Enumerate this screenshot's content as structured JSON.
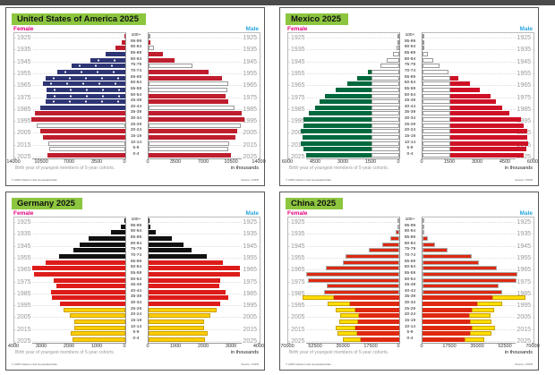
{
  "common": {
    "female_label": "Female",
    "male_label": "Male",
    "footnote": "Birth year of youngest members of 5-year cohorts.",
    "units": "in thousands",
    "copyright": "© 2025 Clarkson and Geospatial Atlas",
    "source": "Source: UNPD",
    "age_groups": [
      "100+",
      "95-99",
      "90-94",
      "85-89",
      "80-84",
      "75-79",
      "70-74",
      "65-69",
      "60-64",
      "55-59",
      "50-54",
      "45-49",
      "40-44",
      "35-39",
      "30-34",
      "25-29",
      "20-24",
      "15-19",
      "10-14",
      "5-9",
      "0-4"
    ],
    "birth_years": [
      "1925",
      "1935",
      "1945",
      "1955",
      "1965",
      "1975",
      "1985",
      "1995",
      "2005",
      "2015",
      "2025"
    ],
    "colors": {
      "female_label": "#e6007e",
      "male_label": "#29a8df",
      "title_bg": "#8cc63f"
    }
  },
  "chart_data": [
    {
      "type": "bar",
      "title": "United States of America 2025",
      "xlabel": "in thousands",
      "ylabel": "Age group",
      "xlim": [
        0,
        14000
      ],
      "ticks": [
        "14000",
        "10500",
        "7000",
        "3500",
        "0"
      ],
      "categories": [
        "100+",
        "95-99",
        "90-94",
        "85-89",
        "80-84",
        "75-79",
        "70-74",
        "65-69",
        "60-64",
        "55-59",
        "50-54",
        "45-49",
        "40-44",
        "35-39",
        "30-34",
        "25-29",
        "20-24",
        "15-19",
        "10-14",
        "5-9",
        "0-4"
      ],
      "series": [
        {
          "name": "Female",
          "values": [
            100,
            450,
            1300,
            2500,
            4400,
            6800,
            8600,
            10000,
            10400,
            9900,
            9900,
            10000,
            10700,
            11400,
            11900,
            11200,
            10700,
            10400,
            9700,
            9600,
            9800
          ]
        },
        {
          "name": "Male",
          "values": [
            50,
            200,
            700,
            1800,
            3300,
            5500,
            7600,
            9300,
            10100,
            9900,
            9700,
            10000,
            10800,
            11700,
            12100,
            11600,
            11200,
            11000,
            10200,
            10100,
            10400
          ]
        }
      ],
      "style": "us-flag"
    },
    {
      "type": "bar",
      "title": "Mexico 2025",
      "xlabel": "in thousands",
      "ylabel": "Age group",
      "xlim": [
        0,
        6000
      ],
      "ticks": [
        "6000",
        "4500",
        "3000",
        "1500",
        "0"
      ],
      "categories": [
        "100+",
        "95-99",
        "90-94",
        "85-89",
        "80-84",
        "75-79",
        "70-74",
        "65-69",
        "60-64",
        "55-59",
        "50-54",
        "45-49",
        "40-44",
        "35-39",
        "30-34",
        "25-29",
        "20-24",
        "15-19",
        "10-14",
        "5-9",
        "0-4"
      ],
      "series": [
        {
          "name": "Female",
          "values": [
            10,
            50,
            150,
            330,
            700,
            1040,
            1700,
            2270,
            2830,
            3450,
            4000,
            4300,
            4540,
            4870,
            5200,
            5200,
            5300,
            5250,
            5300,
            5200,
            5050
          ]
        },
        {
          "name": "Male",
          "values": [
            5,
            30,
            100,
            290,
            580,
            920,
            1400,
            1950,
            2580,
            3120,
            3660,
            3950,
            4290,
            4680,
            5300,
            5450,
            5650,
            5650,
            5700,
            5600,
            5450
          ]
        }
      ],
      "style": "mx-flag"
    },
    {
      "type": "bar",
      "title": "Germany 2025",
      "xlabel": "in thousands",
      "ylabel": "Age group",
      "xlim": [
        0,
        4000
      ],
      "ticks": [
        "4000",
        "3000",
        "2000",
        "1000",
        "0"
      ],
      "categories": [
        "100+",
        "95-99",
        "90-94",
        "85-89",
        "80-84",
        "75-79",
        "70-74",
        "65-69",
        "60-64",
        "55-59",
        "50-54",
        "45-49",
        "40-44",
        "35-39",
        "30-34",
        "25-29",
        "20-24",
        "15-19",
        "10-14",
        "5-9",
        "0-4"
      ],
      "series": [
        {
          "name": "Female",
          "values": [
            30,
            160,
            520,
            1330,
            1660,
            1860,
            2400,
            2860,
            3350,
            3290,
            2570,
            2500,
            2670,
            2640,
            2350,
            2240,
            2010,
            1850,
            1850,
            1980,
            1910
          ]
        },
        {
          "name": "Male",
          "values": [
            10,
            65,
            260,
            850,
            1250,
            1540,
            2100,
            2690,
            3280,
            3290,
            2580,
            2550,
            2790,
            2860,
            2580,
            2450,
            2210,
            2010,
            1990,
            2120,
            2020
          ]
        }
      ],
      "style": "de-flag"
    },
    {
      "type": "bar",
      "title": "China 2025",
      "xlabel": "in thousands",
      "ylabel": "Age group",
      "xlim": [
        0,
        70000
      ],
      "ticks": [
        "70000",
        "52500",
        "35000",
        "17500",
        "0"
      ],
      "categories": [
        "100+",
        "95-99",
        "90-94",
        "85-89",
        "80-84",
        "75-79",
        "70-74",
        "65-69",
        "60-64",
        "55-59",
        "50-54",
        "45-49",
        "40-44",
        "35-39",
        "30-34",
        "25-29",
        "20-24",
        "15-19",
        "10-14",
        "5-9",
        "0-4"
      ],
      "series": [
        {
          "name": "Female",
          "values": [
            100,
            500,
            2200,
            5600,
            10600,
            19000,
            33600,
            35800,
            46500,
            58800,
            57700,
            45900,
            47600,
            61000,
            45400,
            40300,
            37500,
            38100,
            40300,
            39200,
            35800
          ]
        },
        {
          "name": "Male",
          "values": [
            50,
            300,
            1100,
            3400,
            7800,
            15700,
            30800,
            35300,
            47000,
            59900,
            59400,
            48200,
            50400,
            65000,
            50400,
            45400,
            43100,
            43700,
            45900,
            43700,
            39200
          ]
        }
      ],
      "style": "cn-flag"
    }
  ]
}
